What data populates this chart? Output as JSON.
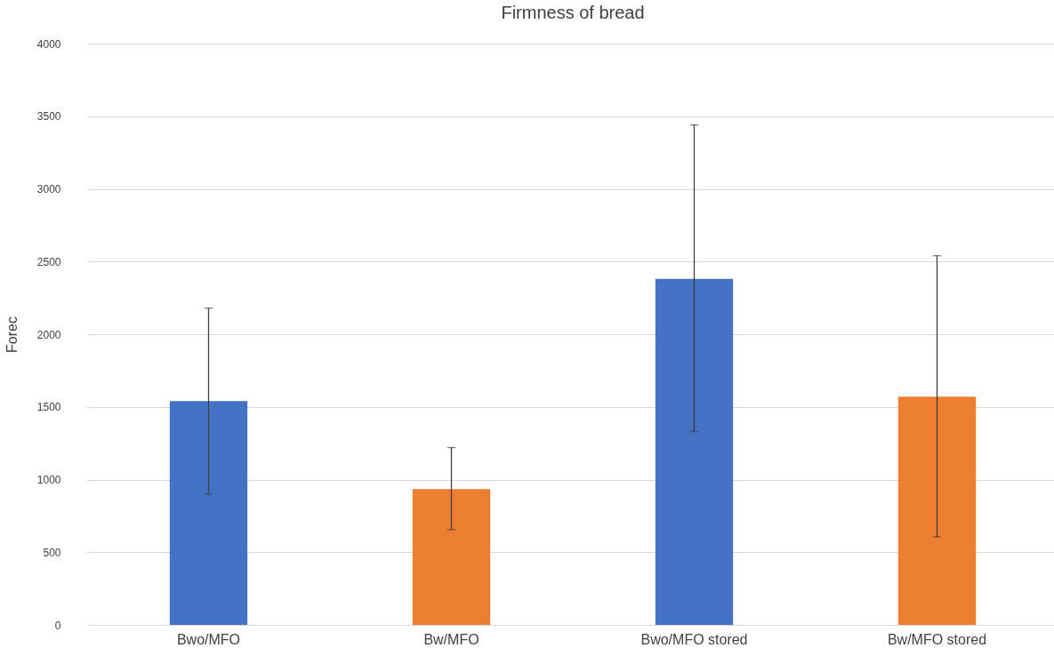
{
  "chart_data": {
    "type": "bar",
    "title": "Firmness of bread",
    "ylabel": "Forec",
    "categories": [
      "Bwo/MFO",
      "Bw/MFO",
      "Bwo/MFO stored",
      "Bw/MFO stored"
    ],
    "values": [
      1540,
      935,
      2380,
      1570
    ],
    "colors": [
      "#4472c4",
      "#ed7d31",
      "#4472c4",
      "#ed7d31"
    ],
    "errors": [
      [
        900,
        2180
      ],
      [
        655,
        1220
      ],
      [
        1330,
        3440
      ],
      [
        605,
        2540
      ]
    ],
    "ylim": [
      0,
      4000
    ],
    "yticks": [
      0,
      500,
      1000,
      1500,
      2000,
      2500,
      3000,
      3500,
      4000
    ],
    "grid": "y"
  }
}
